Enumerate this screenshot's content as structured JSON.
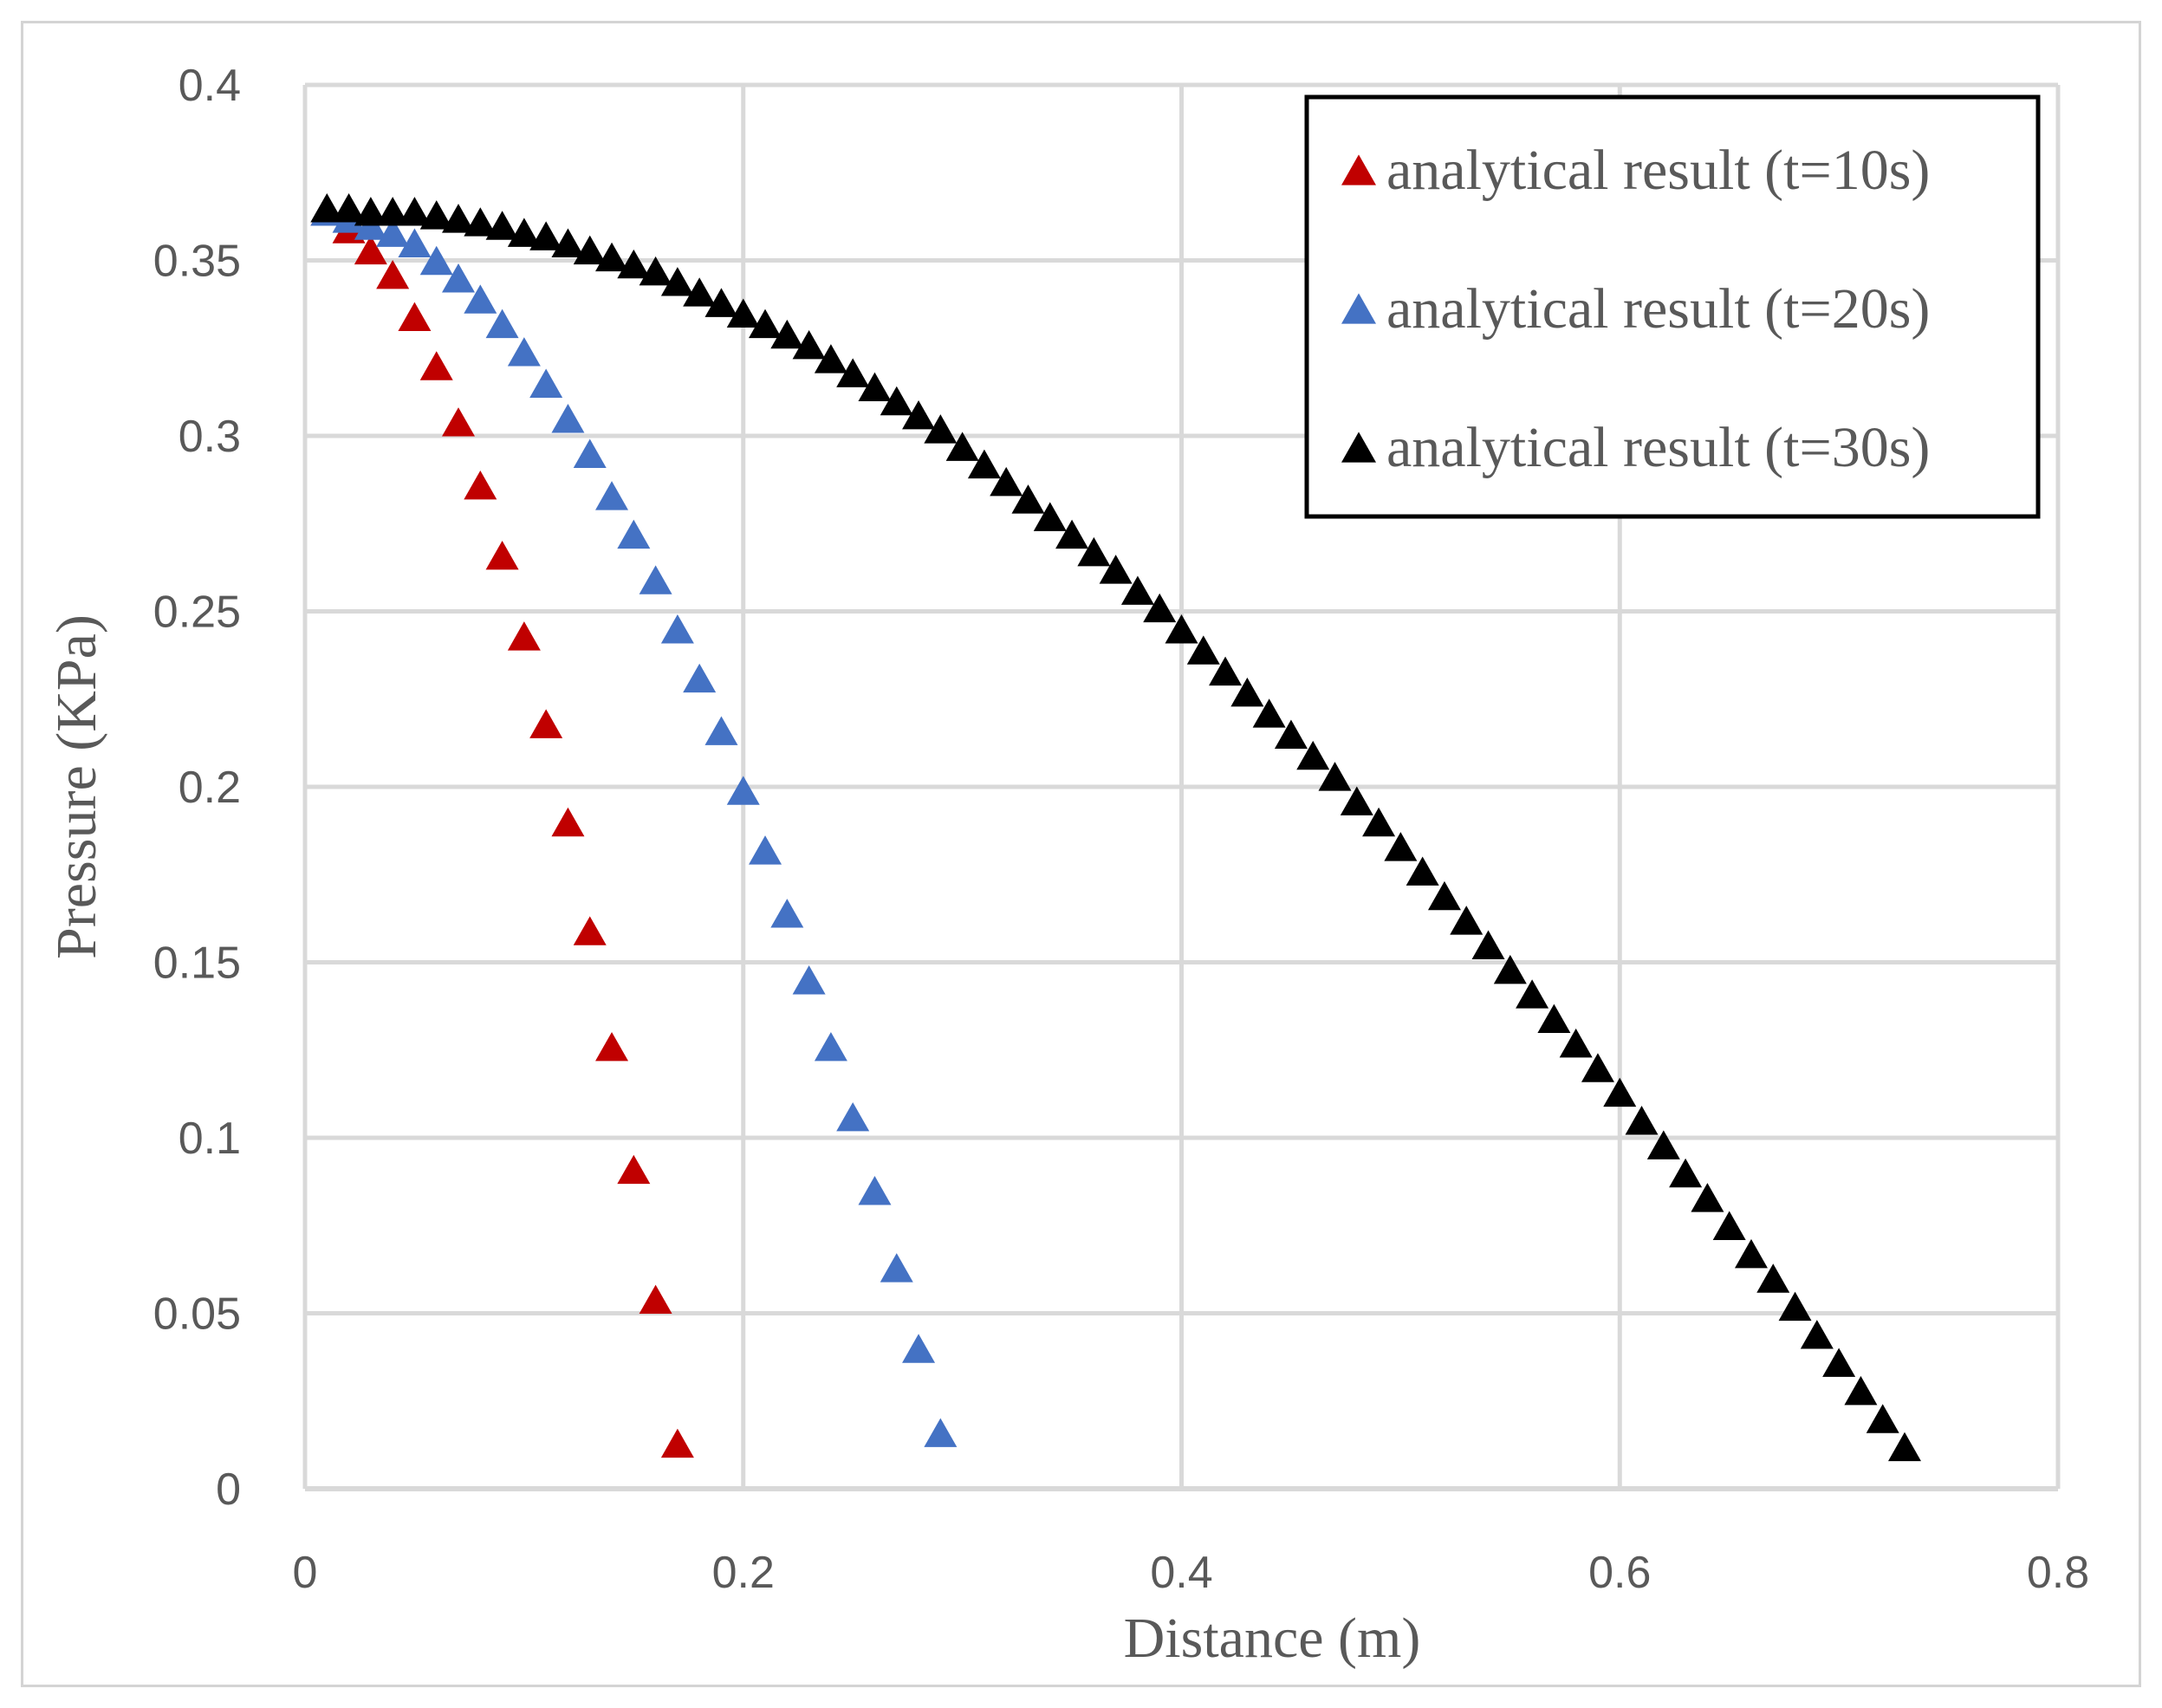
{
  "chart_data": {
    "type": "scatter",
    "title": "",
    "xlabel": "Distance (m)",
    "ylabel": "Pressure (KPa)",
    "xlim": [
      0,
      0.8
    ],
    "ylim": [
      0,
      0.4
    ],
    "xticks": [
      "0",
      "0.2",
      "0.4",
      "0.6",
      "0.8"
    ],
    "yticks": [
      "0",
      "0.05",
      "0.1",
      "0.15",
      "0.2",
      "0.25",
      "0.3",
      "0.35",
      "0.4"
    ],
    "grid": true,
    "legend_position": "top-right",
    "marker": "triangle",
    "series": [
      {
        "name": "analytical result (t=10s)",
        "color": "#c00000",
        "x": [
          0.01,
          0.02,
          0.03,
          0.04,
          0.05,
          0.06,
          0.07,
          0.08,
          0.09,
          0.1,
          0.11,
          0.12,
          0.13,
          0.14,
          0.15,
          0.16,
          0.17
        ],
        "y": [
          0.364,
          0.359,
          0.353,
          0.346,
          0.334,
          0.32,
          0.304,
          0.286,
          0.266,
          0.243,
          0.218,
          0.19,
          0.159,
          0.126,
          0.091,
          0.054,
          0.013
        ]
      },
      {
        "name": "analytical result (t=20s)",
        "color": "#4472c4",
        "x": [
          0.01,
          0.02,
          0.03,
          0.04,
          0.05,
          0.06,
          0.07,
          0.08,
          0.09,
          0.1,
          0.11,
          0.12,
          0.13,
          0.14,
          0.15,
          0.16,
          0.17,
          0.18,
          0.19,
          0.2,
          0.21,
          0.22,
          0.23,
          0.24,
          0.25,
          0.26,
          0.27,
          0.28,
          0.29
        ],
        "y": [
          0.364,
          0.362,
          0.36,
          0.358,
          0.355,
          0.35,
          0.345,
          0.339,
          0.332,
          0.324,
          0.315,
          0.305,
          0.295,
          0.283,
          0.272,
          0.259,
          0.245,
          0.231,
          0.216,
          0.199,
          0.182,
          0.164,
          0.145,
          0.126,
          0.106,
          0.085,
          0.063,
          0.04,
          0.016
        ]
      },
      {
        "name": "analytical result (t=30s)",
        "color": "#000000",
        "x": [
          0.01,
          0.02,
          0.03,
          0.04,
          0.05,
          0.06,
          0.07,
          0.08,
          0.09,
          0.1,
          0.11,
          0.12,
          0.13,
          0.14,
          0.15,
          0.16,
          0.17,
          0.18,
          0.19,
          0.2,
          0.21,
          0.22,
          0.23,
          0.24,
          0.25,
          0.26,
          0.27,
          0.28,
          0.29,
          0.3,
          0.31,
          0.32,
          0.33,
          0.34,
          0.35,
          0.36,
          0.37,
          0.38,
          0.39,
          0.4,
          0.41,
          0.42,
          0.43,
          0.44,
          0.45,
          0.46,
          0.47,
          0.48,
          0.49,
          0.5,
          0.51,
          0.52,
          0.53,
          0.54,
          0.55,
          0.56,
          0.57,
          0.58,
          0.59,
          0.6,
          0.61,
          0.62,
          0.63,
          0.64,
          0.65,
          0.66,
          0.67,
          0.68,
          0.69,
          0.7,
          0.71,
          0.72,
          0.73
        ],
        "y": [
          0.365,
          0.365,
          0.364,
          0.364,
          0.364,
          0.363,
          0.362,
          0.361,
          0.36,
          0.358,
          0.357,
          0.355,
          0.353,
          0.351,
          0.349,
          0.347,
          0.344,
          0.341,
          0.338,
          0.335,
          0.332,
          0.329,
          0.326,
          0.322,
          0.318,
          0.314,
          0.31,
          0.306,
          0.302,
          0.297,
          0.292,
          0.287,
          0.282,
          0.277,
          0.272,
          0.267,
          0.262,
          0.256,
          0.251,
          0.245,
          0.239,
          0.233,
          0.227,
          0.221,
          0.215,
          0.209,
          0.203,
          0.196,
          0.19,
          0.183,
          0.176,
          0.169,
          0.162,
          0.155,
          0.148,
          0.141,
          0.134,
          0.127,
          0.12,
          0.113,
          0.105,
          0.098,
          0.09,
          0.083,
          0.075,
          0.067,
          0.06,
          0.052,
          0.044,
          0.036,
          0.028,
          0.02,
          0.012
        ]
      }
    ]
  }
}
